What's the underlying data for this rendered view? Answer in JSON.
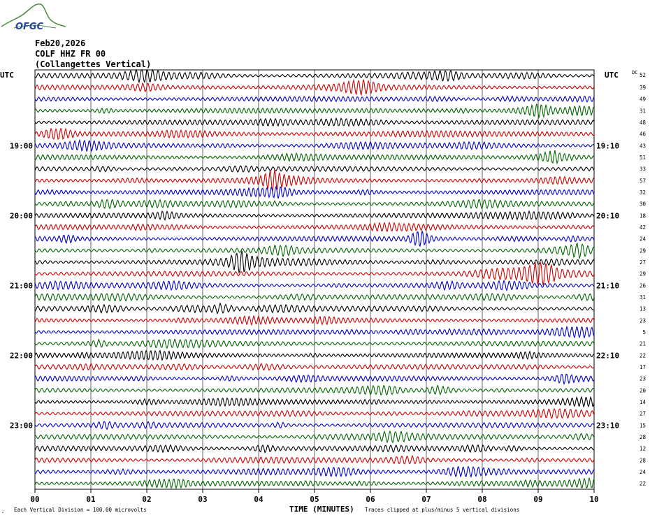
{
  "header": {
    "logo_text": "OFGC",
    "date": "Feb20,2026",
    "station": "COLF HHZ FR 00",
    "location": "(Collangettes Vertical)"
  },
  "labels": {
    "left_utc": "UTC",
    "right_utc": "UTC",
    "dc_header": "DC",
    "x_axis_title": "TIME (MINUTES)",
    "footer_left": "Each Vertical Division =  100.00 microvolts",
    "footer_right": "Traces clipped at plus/minus 5 vertical divisions",
    "corner_mark": "♩"
  },
  "colors": {
    "trace_cycle": [
      "#000000",
      "#d00000",
      "#0000cc",
      "#006600"
    ],
    "grid": "#000000",
    "logo": "#4a8a3a",
    "logo_text": "#2a4a9a"
  },
  "chart_data": {
    "type": "line",
    "x_axis": {
      "label": "TIME (MINUTES)",
      "range": [
        0,
        10
      ],
      "ticks": [
        "00",
        "01",
        "02",
        "03",
        "04",
        "05",
        "06",
        "07",
        "08",
        "09",
        "10"
      ]
    },
    "left_hour_labels": [
      {
        "row": 6,
        "text": "19:00"
      },
      {
        "row": 12,
        "text": "20:00"
      },
      {
        "row": 18,
        "text": "21:00"
      },
      {
        "row": 24,
        "text": "22:00"
      },
      {
        "row": 30,
        "text": "23:00"
      }
    ],
    "right_hour_labels": [
      {
        "row": 6,
        "text": "19:10"
      },
      {
        "row": 12,
        "text": "20:10"
      },
      {
        "row": 18,
        "text": "21:10"
      },
      {
        "row": 24,
        "text": "22:10"
      },
      {
        "row": 30,
        "text": "23:10"
      }
    ],
    "row_count": 36,
    "dc_values": [
      52,
      39,
      49,
      31,
      48,
      46,
      43,
      51,
      33,
      57,
      32,
      30,
      18,
      42,
      24,
      29,
      27,
      29,
      26,
      31,
      13,
      23,
      5,
      21,
      22,
      17,
      23,
      20,
      14,
      27,
      15,
      28,
      12,
      28,
      24,
      22
    ],
    "vertical_division_microvolts": 100.0,
    "clip_divisions": 5
  }
}
